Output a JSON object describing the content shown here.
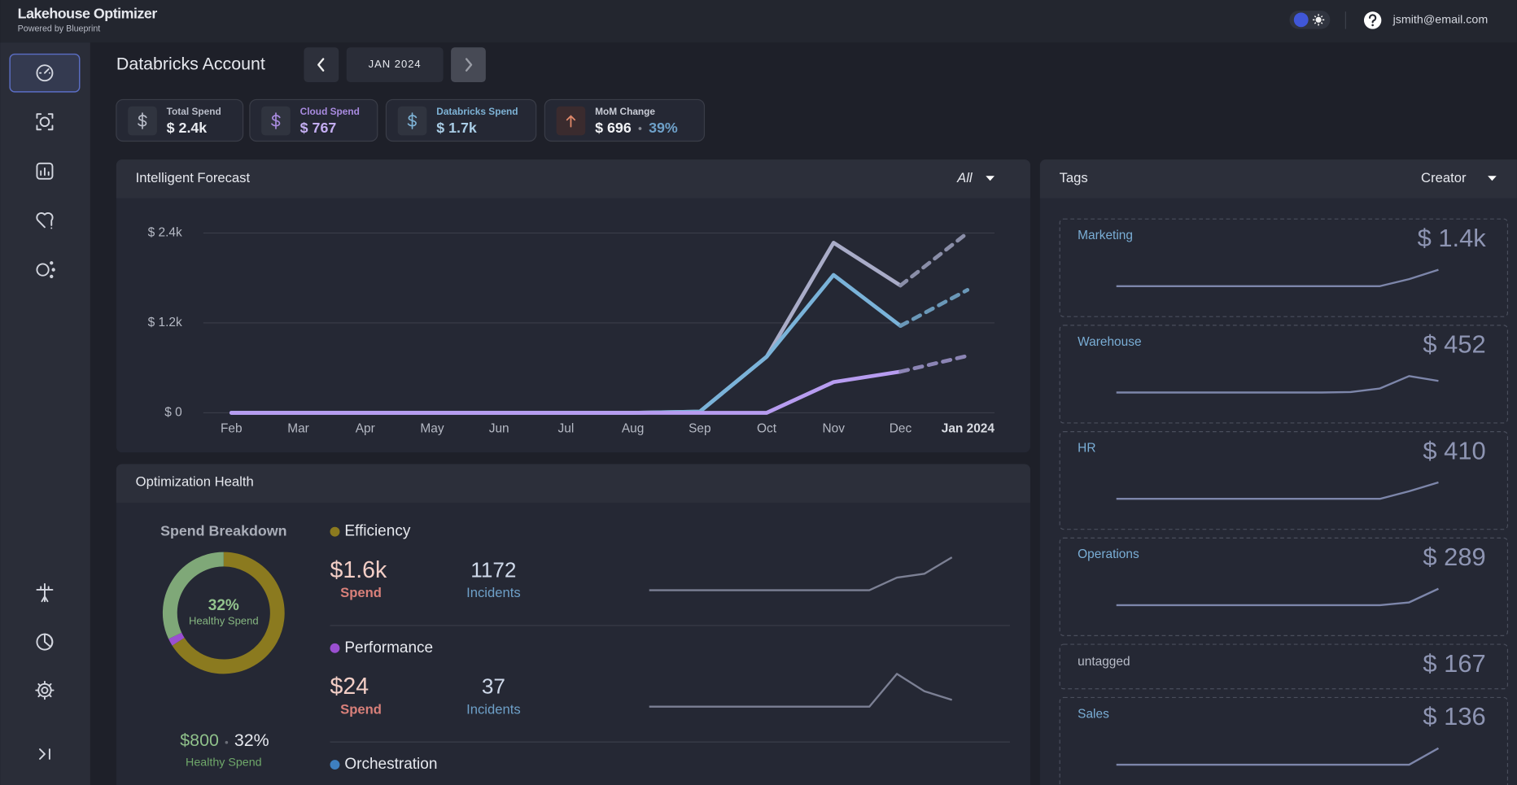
{
  "header": {
    "title": "Lakehouse Optimizer",
    "subtitle": "Powered by Blueprint",
    "user": "jsmith@email.com"
  },
  "page": {
    "title": "Databricks Account",
    "period": "JAN 2024"
  },
  "kpis": [
    {
      "label": "Total Spend",
      "value": "$ 2.4k"
    },
    {
      "label": "Cloud Spend",
      "value": "$ 767"
    },
    {
      "label": "Databricks Spend",
      "value": "$ 1.7k"
    },
    {
      "label": "MoM Change",
      "value": "$ 696",
      "change": "39%"
    }
  ],
  "chart_data": {
    "type": "line",
    "title": "Intelligent Forecast",
    "filter": "All",
    "categories": [
      "Feb",
      "Mar",
      "Apr",
      "May",
      "Jun",
      "Jul",
      "Aug",
      "Sep",
      "Oct",
      "Nov",
      "Dec",
      "Jan 2024"
    ],
    "ylim": [
      0,
      2400
    ],
    "yticks": [
      {
        "value": 0,
        "label": "$ 0"
      },
      {
        "value": 1200,
        "label": "$ 1.2k"
      },
      {
        "value": 2400,
        "label": "$ 2.4k"
      }
    ],
    "grid": true,
    "series": [
      {
        "color": "#a9acc8",
        "values": [
          0,
          0,
          0,
          0,
          0,
          0,
          0,
          15,
          750,
          2270,
          1700,
          null
        ]
      },
      {
        "color": "#7ab3d9",
        "values": [
          0,
          0,
          0,
          0,
          0,
          0,
          0,
          15,
          750,
          1840,
          1160,
          null
        ]
      },
      {
        "color": "#b79cf0",
        "values": [
          0,
          0,
          0,
          0,
          0,
          0,
          0,
          0,
          0,
          410,
          550,
          null
        ]
      },
      {
        "color": "#8a8ea8",
        "dashed": true,
        "values": [
          null,
          null,
          null,
          null,
          null,
          null,
          null,
          null,
          null,
          null,
          1700,
          2400
        ]
      },
      {
        "color": "#6a98b8",
        "dashed": true,
        "values": [
          null,
          null,
          null,
          null,
          null,
          null,
          null,
          null,
          null,
          null,
          1160,
          1640
        ]
      },
      {
        "color": "#8c85b5",
        "dashed": true,
        "values": [
          null,
          null,
          null,
          null,
          null,
          null,
          null,
          null,
          null,
          null,
          550,
          760
        ]
      }
    ]
  },
  "health": {
    "title": "Optimization Health",
    "breakdown": {
      "title": "Spend Breakdown",
      "segments": [
        {
          "color": "#8b7a1f",
          "value": 66
        },
        {
          "color": "#9a4fd0",
          "value": 2
        },
        {
          "color": "#7fa878",
          "value": 32
        }
      ],
      "center_value": "32%",
      "center_label": "Healthy Spend",
      "amount": "$800",
      "share": "32%",
      "amount_label": "Healthy Spend"
    },
    "categories": [
      {
        "name": "Efficiency",
        "color": "#8b7a1f",
        "spend": "$1.6k",
        "spend_label": "Spend",
        "incidents": 1172,
        "incidents_label": "Incidents",
        "trend": [
          0,
          0,
          0,
          0,
          0,
          0,
          0,
          0,
          0,
          13,
          17,
          34
        ]
      },
      {
        "name": "Performance",
        "color": "#9a4fd0",
        "spend": "$24",
        "spend_label": "Spend",
        "incidents": 37,
        "incidents_label": "Incidents",
        "trend": [
          0,
          0,
          0,
          0,
          0,
          0,
          0,
          0,
          0,
          34,
          16,
          7
        ]
      },
      {
        "name": "Orchestration",
        "color": "#3e7fc0"
      }
    ]
  },
  "tags": {
    "title": "Tags",
    "filter": "Creator",
    "items": [
      {
        "name": "Marketing",
        "value": "$ 1.4k",
        "trend": [
          0,
          0,
          0,
          0,
          0,
          0,
          0,
          0,
          0,
          0,
          600,
          1400
        ]
      },
      {
        "name": "Warehouse",
        "value": "$ 452",
        "trend": [
          0,
          0,
          0,
          0,
          0,
          0,
          0,
          0,
          20,
          160,
          640,
          452
        ]
      },
      {
        "name": "HR",
        "value": "$ 410",
        "trend": [
          0,
          0,
          0,
          0,
          0,
          0,
          0,
          0,
          0,
          0,
          190,
          410
        ]
      },
      {
        "name": "Operations",
        "value": "$ 289",
        "trend": [
          0,
          0,
          0,
          0,
          0,
          0,
          0,
          0,
          0,
          0,
          50,
          289
        ]
      },
      {
        "name": "untagged",
        "value": "$ 167"
      },
      {
        "name": "Sales",
        "value": "$ 136",
        "trend": [
          0,
          0,
          0,
          0,
          0,
          0,
          0,
          0,
          0,
          0,
          0,
          136
        ]
      }
    ]
  }
}
